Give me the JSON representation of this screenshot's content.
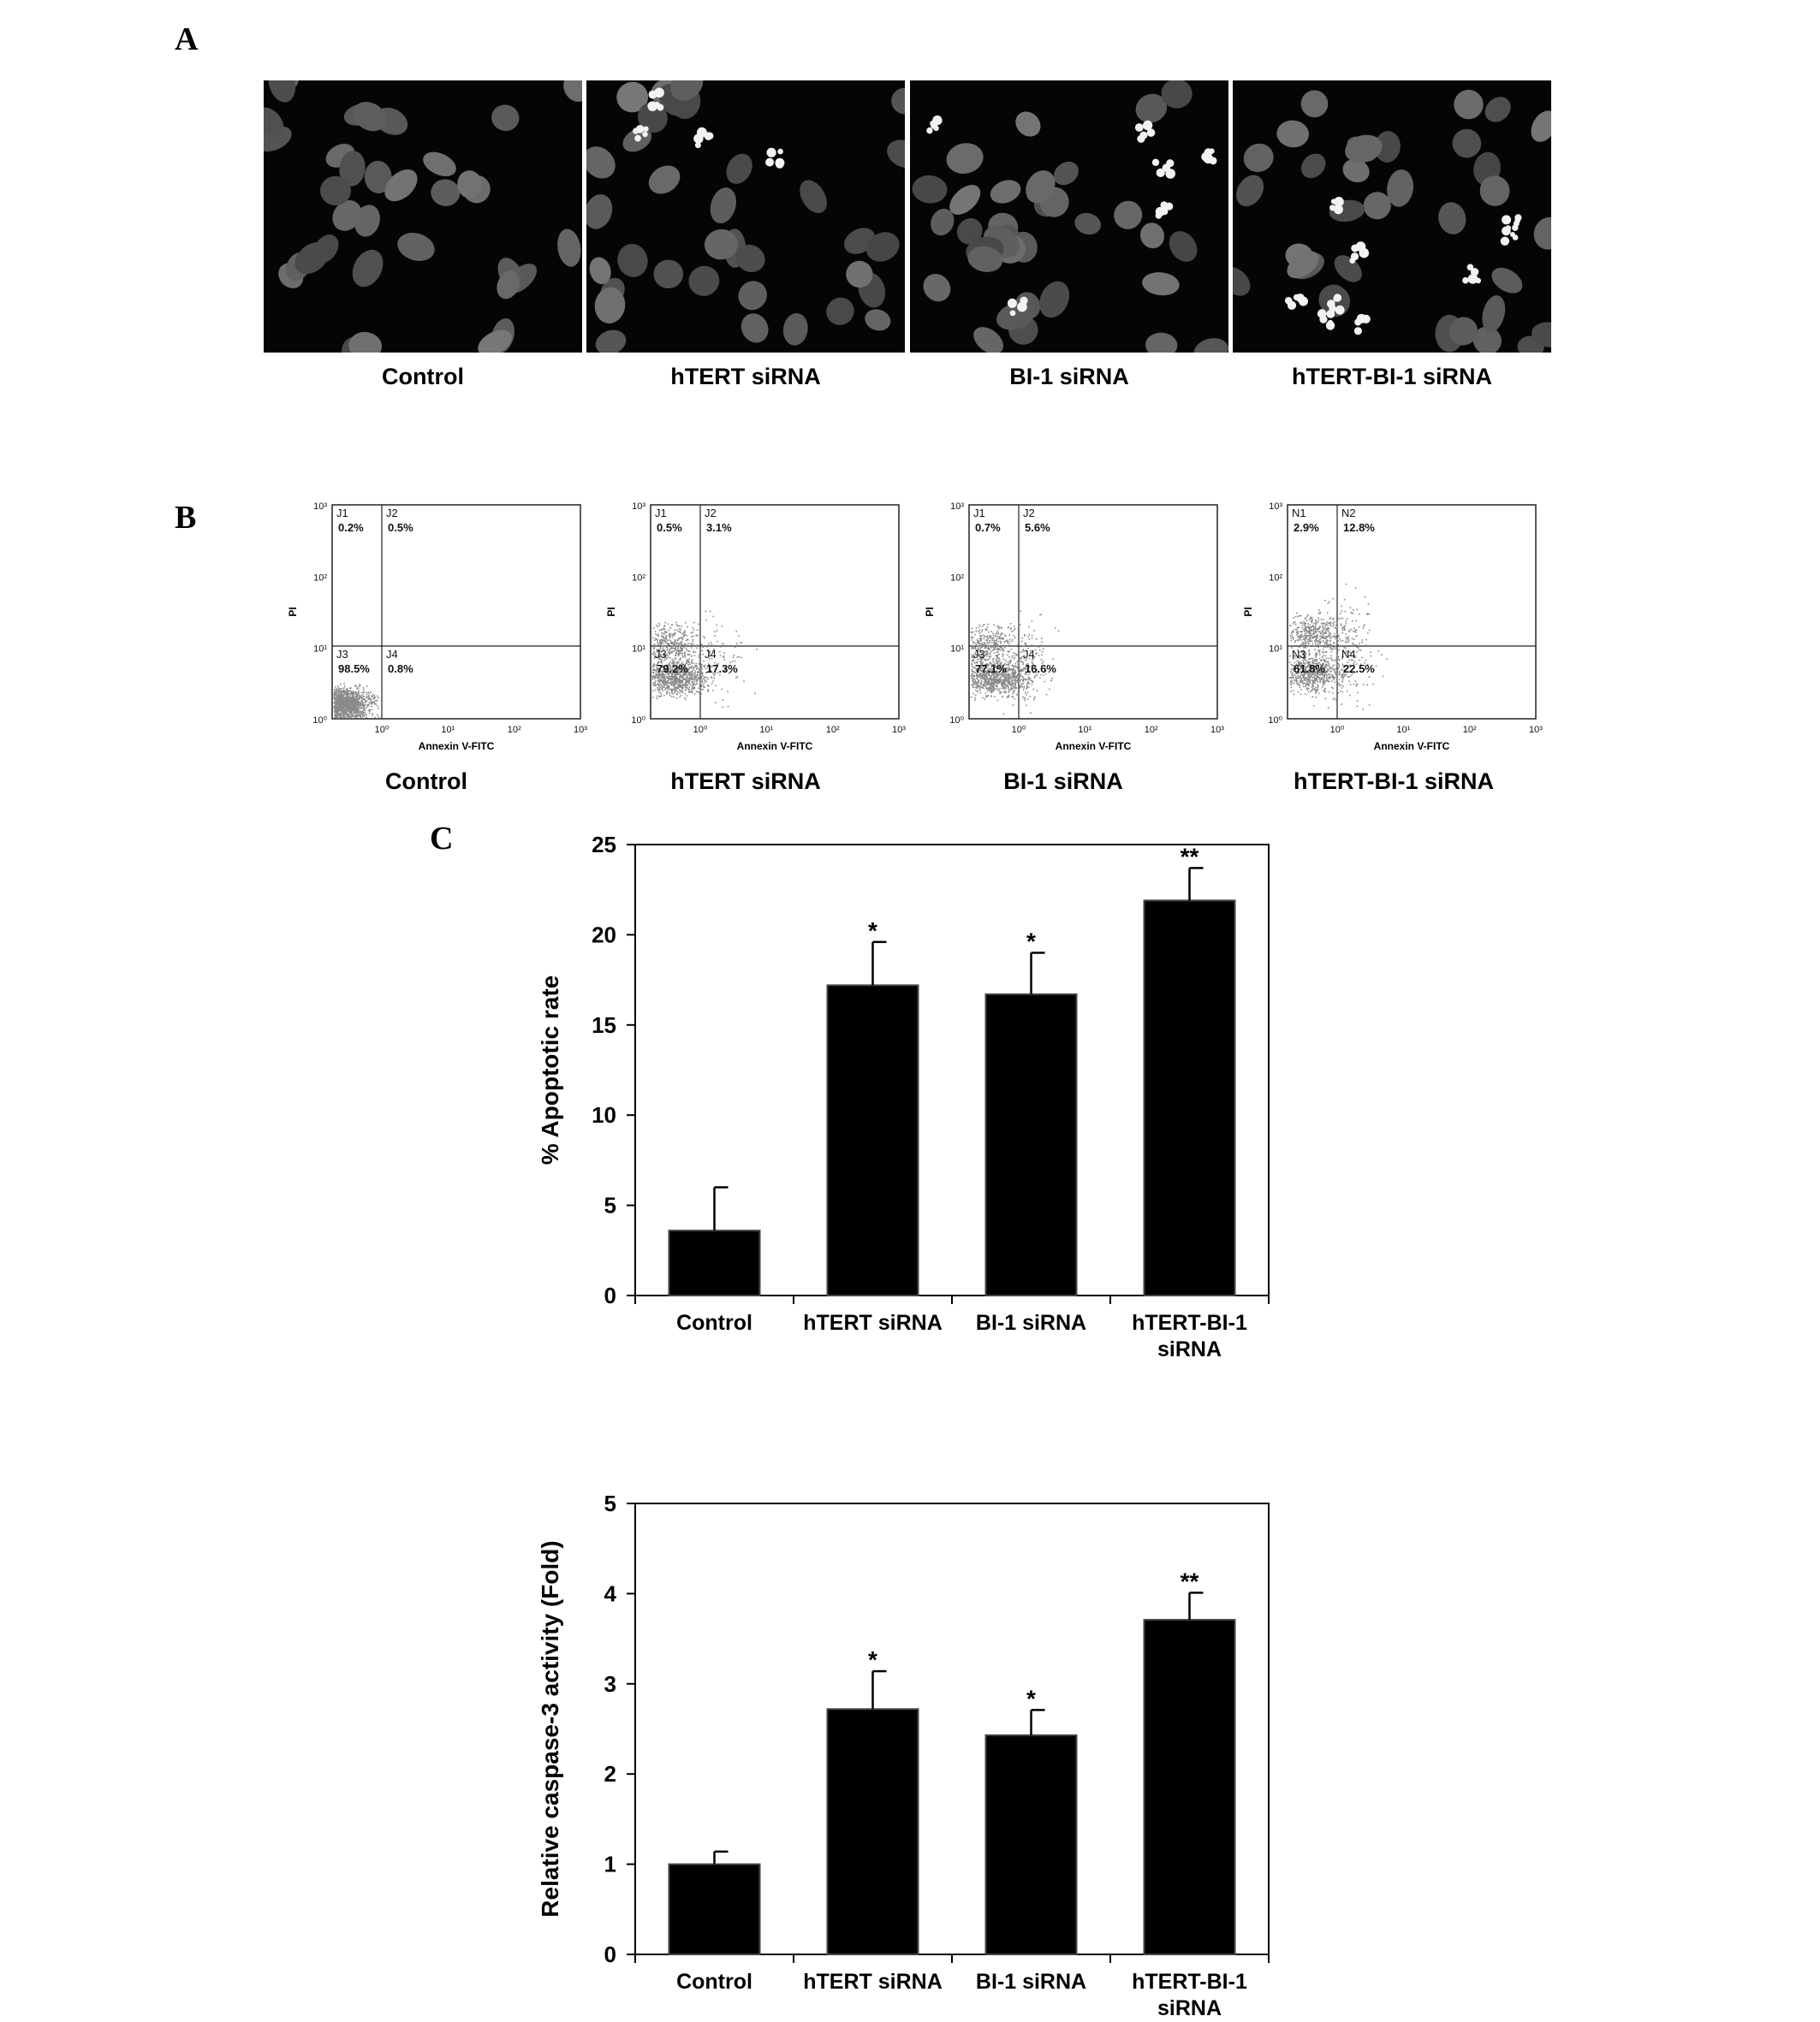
{
  "panels": {
    "a": {
      "letter": "A",
      "images": [
        {
          "label": "Control"
        },
        {
          "label": "hTERT siRNA"
        },
        {
          "label": "BI-1 siRNA"
        },
        {
          "label": "hTERT-BI-1 siRNA"
        }
      ]
    },
    "b": {
      "letter": "B",
      "plots": [
        {
          "label": "Control",
          "quadrants": [
            {
              "name": "J1",
              "value": "0.2%"
            },
            {
              "name": "J2",
              "value": "0.5%"
            },
            {
              "name": "J3",
              "value": "98.5%"
            },
            {
              "name": "J4",
              "value": "0.8%"
            }
          ]
        },
        {
          "label": "hTERT siRNA",
          "quadrants": [
            {
              "name": "J1",
              "value": "0.5%"
            },
            {
              "name": "J2",
              "value": "3.1%"
            },
            {
              "name": "J3",
              "value": "79.2%"
            },
            {
              "name": "J4",
              "value": "17.3%"
            }
          ]
        },
        {
          "label": "BI-1 siRNA",
          "quadrants": [
            {
              "name": "J1",
              "value": "0.7%"
            },
            {
              "name": "J2",
              "value": "5.6%"
            },
            {
              "name": "J3",
              "value": "77.1%"
            },
            {
              "name": "J4",
              "value": "16.6%"
            }
          ]
        },
        {
          "label": "hTERT-BI-1 siRNA",
          "quadrants": [
            {
              "name": "N1",
              "value": "2.9%"
            },
            {
              "name": "N2",
              "value": "12.8%"
            },
            {
              "name": "N3",
              "value": "61.8%"
            },
            {
              "name": "N4",
              "value": "22.5%"
            }
          ]
        }
      ],
      "ylabel": "PI",
      "xlabel": "Annexin V-FITC",
      "ticks": [
        "10⁰",
        "10¹",
        "10²",
        "10³"
      ]
    },
    "c": {
      "letter": "C"
    }
  },
  "chart_data": [
    {
      "type": "bar",
      "categories": [
        "Control",
        "hTERT siRNA",
        "BI-1 siRNA",
        "hTERT-BI-1 siRNA"
      ],
      "category_lines": [
        [
          "Control"
        ],
        [
          "hTERT siRNA"
        ],
        [
          "BI-1 siRNA"
        ],
        [
          "hTERT-BI-1",
          "siRNA"
        ]
      ],
      "values": [
        3.6,
        17.2,
        16.7,
        21.9
      ],
      "errors": [
        2.4,
        2.4,
        2.3,
        1.8
      ],
      "significance": [
        "",
        "*",
        "*",
        "**"
      ],
      "ylabel": "% Apoptotic rate",
      "ylim": [
        0,
        25
      ],
      "yticks": [
        0,
        5,
        10,
        15,
        20,
        25
      ],
      "bar_color": "#000000"
    },
    {
      "type": "bar",
      "categories": [
        "Control",
        "hTERT siRNA",
        "BI-1 siRNA",
        "hTERT-BI-1 siRNA"
      ],
      "category_lines": [
        [
          "Control"
        ],
        [
          "hTERT siRNA"
        ],
        [
          "BI-1 siRNA"
        ],
        [
          "hTERT-BI-1",
          "siRNA"
        ]
      ],
      "values": [
        1.0,
        2.72,
        2.43,
        3.71
      ],
      "errors": [
        0.14,
        0.42,
        0.28,
        0.3
      ],
      "significance": [
        "",
        "*",
        "*",
        "**"
      ],
      "ylabel": "Relative caspase-3 activity (Fold)",
      "ylim": [
        0,
        5
      ],
      "yticks": [
        0,
        1,
        2,
        3,
        4,
        5
      ],
      "bar_color": "#000000"
    }
  ]
}
